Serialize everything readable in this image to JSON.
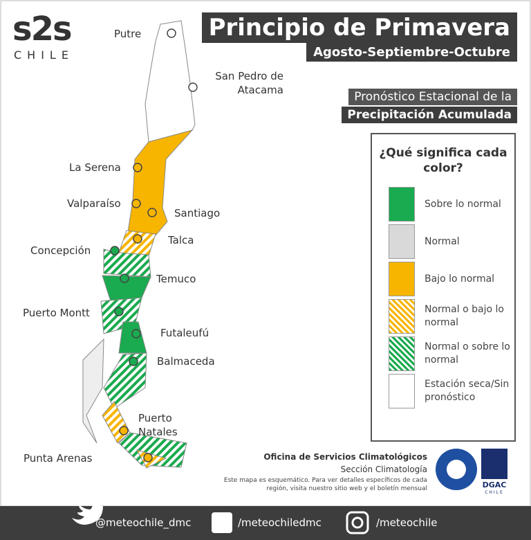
{
  "logo": {
    "name": "s2s",
    "country": "CHILE"
  },
  "header": {
    "title": "Principio de Primavera",
    "subtitle": "Agosto-Septiembre-Octubre"
  },
  "product": {
    "line1": "Pronóstico Estacional de la",
    "line2": "Precipitación Acumulada"
  },
  "legend": {
    "title": "¿Qué significa cada color?",
    "items": [
      {
        "label": "Sobre lo normal",
        "color": "#1aaa4f",
        "pattern": "solid"
      },
      {
        "label": "Normal",
        "color": "#d9d9d9",
        "pattern": "solid"
      },
      {
        "label": "Bajo lo normal",
        "color": "#f7b500",
        "pattern": "solid"
      },
      {
        "label": "Normal o bajo lo normal",
        "color": "#f7b500",
        "pattern": "hatch"
      },
      {
        "label": "Normal o sobre lo normal",
        "color": "#1aaa4f",
        "pattern": "hatch"
      },
      {
        "label": "Estación seca/Sin pronóstico",
        "color": "#ffffff",
        "pattern": "solid"
      }
    ]
  },
  "cities": [
    "Putre",
    "San Pedro de Atacama",
    "La Serena",
    "Valparaíso",
    "Santiago",
    "Talca",
    "Concepción",
    "Temuco",
    "Puerto Montt",
    "Futaleufú",
    "Balmaceda",
    "Puerto Natales",
    "Punta Arenas"
  ],
  "credits": {
    "office": "Oficina de Servicios Climatológicos",
    "section": "Sección Climatología",
    "note": "Este mapa es esquemático. Para ver detalles específicos de cada región, visita nuestro sitio web y el boletín mensual",
    "agency": "DGAC",
    "agency_country": "CHILE"
  },
  "footer": {
    "twitter": "@meteochile_dmc",
    "facebook": "/meteochiledmc",
    "instagram": "/meteochile"
  }
}
